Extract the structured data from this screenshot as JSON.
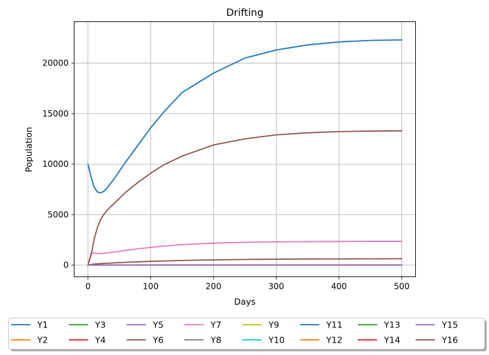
{
  "chart_data": {
    "type": "line",
    "title": "Drifting",
    "xlabel": "Days",
    "ylabel": "Population",
    "xlim": [
      -22,
      522
    ],
    "ylim": [
      -1150,
      24100
    ],
    "xticks": [
      0,
      100,
      200,
      300,
      400,
      500
    ],
    "yticks": [
      0,
      5000,
      10000,
      15000,
      20000
    ],
    "grid": true,
    "legend": {
      "placement": "bottom-center-below-plot",
      "columns": 8
    },
    "x": [
      0,
      5,
      10,
      15,
      20,
      25,
      30,
      40,
      50,
      60,
      80,
      100,
      120,
      150,
      200,
      250,
      300,
      350,
      400,
      450,
      500
    ],
    "series": [
      {
        "name": "Y1",
        "color": "#1f77b4",
        "values": [
          10000,
          8700,
          7700,
          7250,
          7150,
          7300,
          7600,
          8400,
          9300,
          10200,
          11900,
          13600,
          15100,
          17100,
          19000,
          20500,
          21300,
          21800,
          22100,
          22250,
          22300
        ]
      },
      {
        "name": "Y2",
        "color": "#ff7f0e",
        "values": [
          0,
          1,
          1,
          1,
          1,
          1,
          1,
          1,
          1,
          1,
          1,
          1,
          1,
          1,
          1,
          1,
          1,
          1,
          1,
          1,
          1
        ]
      },
      {
        "name": "Y3",
        "color": "#2ca02c",
        "values": [
          0,
          1,
          1,
          1,
          1,
          1,
          1,
          1,
          1,
          1,
          1,
          1,
          1,
          1,
          1,
          1,
          1,
          1,
          1,
          1,
          1
        ]
      },
      {
        "name": "Y4",
        "color": "#d62728",
        "values": [
          0,
          1,
          1,
          1,
          1,
          1,
          1,
          1,
          1,
          1,
          1,
          1,
          1,
          1,
          1,
          1,
          1,
          1,
          1,
          1,
          1
        ]
      },
      {
        "name": "Y5",
        "color": "#9467bd",
        "values": [
          0,
          1,
          1,
          1,
          1,
          1,
          1,
          1,
          1,
          1,
          1,
          1,
          1,
          1,
          1,
          1,
          1,
          1,
          1,
          1,
          1
        ]
      },
      {
        "name": "Y6",
        "color": "#8c564b",
        "values": [
          0,
          60,
          100,
          130,
          150,
          170,
          190,
          220,
          250,
          280,
          330,
          370,
          410,
          460,
          520,
          560,
          590,
          610,
          620,
          625,
          630
        ]
      },
      {
        "name": "Y7",
        "color": "#e377c2",
        "values": [
          0,
          1200,
          1200,
          1150,
          1150,
          1170,
          1200,
          1280,
          1370,
          1460,
          1620,
          1760,
          1880,
          2030,
          2180,
          2260,
          2310,
          2330,
          2345,
          2350,
          2350
        ]
      },
      {
        "name": "Y8",
        "color": "#7f7f7f",
        "values": [
          0,
          1,
          1,
          1,
          1,
          1,
          1,
          1,
          1,
          1,
          1,
          1,
          1,
          1,
          1,
          1,
          1,
          1,
          1,
          1,
          1
        ]
      },
      {
        "name": "Y9",
        "color": "#bcbd22",
        "values": [
          0,
          1,
          1,
          1,
          1,
          1,
          1,
          1,
          1,
          1,
          1,
          1,
          1,
          1,
          1,
          1,
          1,
          1,
          1,
          1,
          1
        ]
      },
      {
        "name": "Y10",
        "color": "#17becf",
        "values": [
          0,
          1,
          1,
          1,
          1,
          1,
          1,
          1,
          1,
          1,
          1,
          1,
          1,
          1,
          1,
          1,
          1,
          1,
          1,
          1,
          1
        ]
      },
      {
        "name": "Y11",
        "color": "#1f77b4",
        "values": [
          0,
          1,
          1,
          1,
          1,
          1,
          1,
          1,
          1,
          1,
          1,
          1,
          1,
          1,
          1,
          1,
          1,
          1,
          1,
          1,
          1
        ]
      },
      {
        "name": "Y12",
        "color": "#ff7f0e",
        "values": [
          0,
          1,
          1,
          1,
          1,
          1,
          1,
          1,
          1,
          1,
          1,
          1,
          1,
          1,
          1,
          1,
          1,
          1,
          1,
          1,
          1
        ]
      },
      {
        "name": "Y13",
        "color": "#2ca02c",
        "values": [
          0,
          1,
          1,
          1,
          1,
          1,
          1,
          1,
          1,
          1,
          1,
          1,
          1,
          1,
          1,
          1,
          1,
          1,
          1,
          1,
          1
        ]
      },
      {
        "name": "Y14",
        "color": "#d62728",
        "values": [
          0,
          1,
          1,
          1,
          1,
          1,
          1,
          1,
          1,
          1,
          1,
          1,
          1,
          1,
          1,
          1,
          1,
          1,
          1,
          1,
          1
        ]
      },
      {
        "name": "Y15",
        "color": "#9467bd",
        "values": [
          0,
          1,
          1,
          1,
          1,
          1,
          1,
          1,
          1,
          1,
          1,
          1,
          1,
          1,
          1,
          1,
          1,
          1,
          1,
          1,
          1
        ]
      },
      {
        "name": "Y16",
        "color": "#8c564b",
        "values": [
          0,
          1000,
          2600,
          3700,
          4500,
          5000,
          5400,
          6000,
          6600,
          7200,
          8200,
          9100,
          9900,
          10800,
          11900,
          12500,
          12900,
          13100,
          13220,
          13270,
          13300
        ]
      }
    ]
  }
}
